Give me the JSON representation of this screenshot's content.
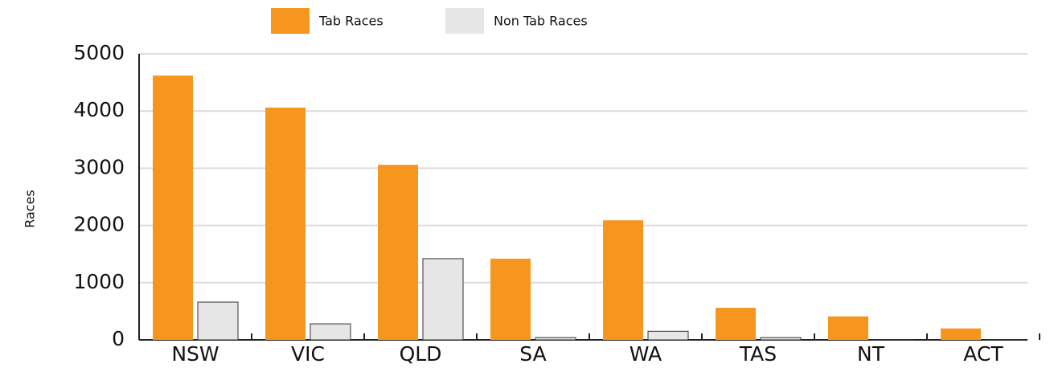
{
  "chart_data": {
    "type": "bar",
    "y_label": "Races",
    "categories": [
      "NSW",
      "VIC",
      "QLD",
      "SA",
      "WA",
      "TAS",
      "NT",
      "ACT"
    ],
    "series": [
      {
        "name": "Tab Races",
        "color": "#f7961e",
        "values": [
          4620,
          4060,
          3060,
          1420,
          2090,
          560,
          410,
          200
        ]
      },
      {
        "name": "Non Tab Races",
        "color": "#e6e6e6",
        "values": [
          660,
          280,
          1420,
          40,
          150,
          40,
          5,
          5
        ]
      }
    ],
    "ylim": [
      0,
      5000
    ],
    "yticks": [
      0,
      1000,
      2000,
      3000,
      4000,
      5000
    ],
    "grid": true,
    "legend": "top"
  }
}
